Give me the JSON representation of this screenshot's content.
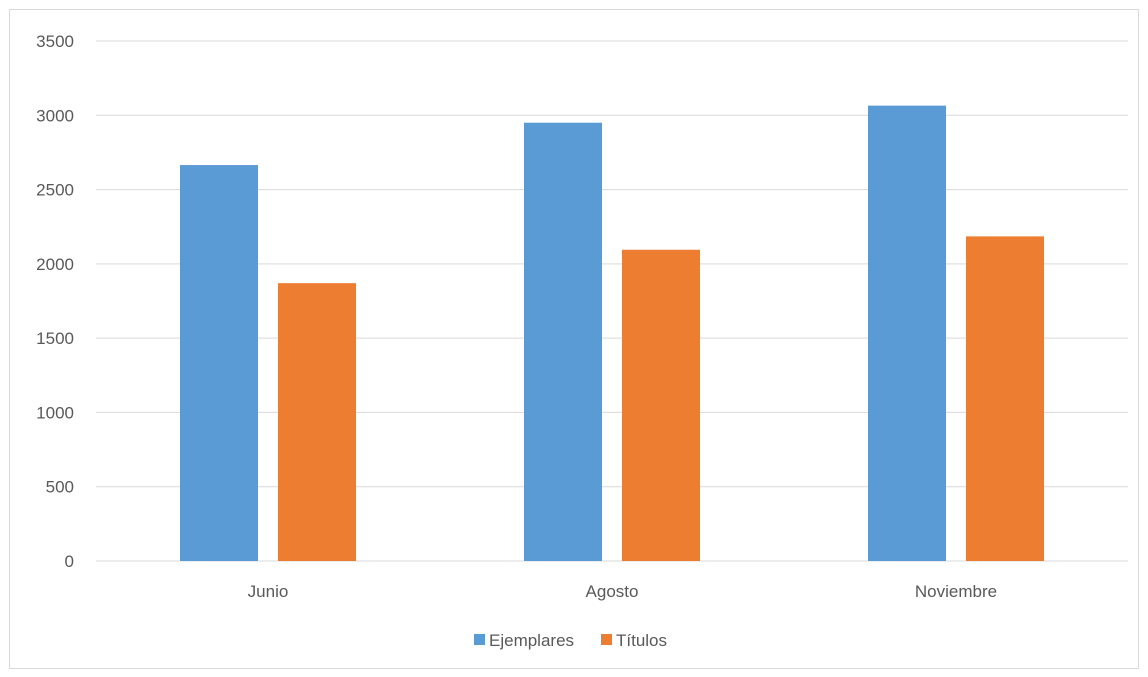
{
  "chart_data": {
    "type": "bar",
    "categories": [
      "Junio",
      "Agosto",
      "Noviembre"
    ],
    "series": [
      {
        "name": "Ejemplares",
        "color": "#5b9bd5",
        "values": [
          2665,
          2950,
          3065
        ]
      },
      {
        "name": "Títulos",
        "color": "#ed7d31",
        "values": [
          1870,
          2095,
          2185
        ]
      }
    ],
    "title": "",
    "xlabel": "",
    "ylabel": "",
    "ylim": [
      0,
      3500
    ],
    "yticks": [
      0,
      500,
      1000,
      1500,
      2000,
      2500,
      3000,
      3500
    ],
    "grid": true,
    "legend_position": "bottom",
    "colors": {
      "gridline": "#d9d9d9",
      "axis_text": "#595959"
    }
  }
}
